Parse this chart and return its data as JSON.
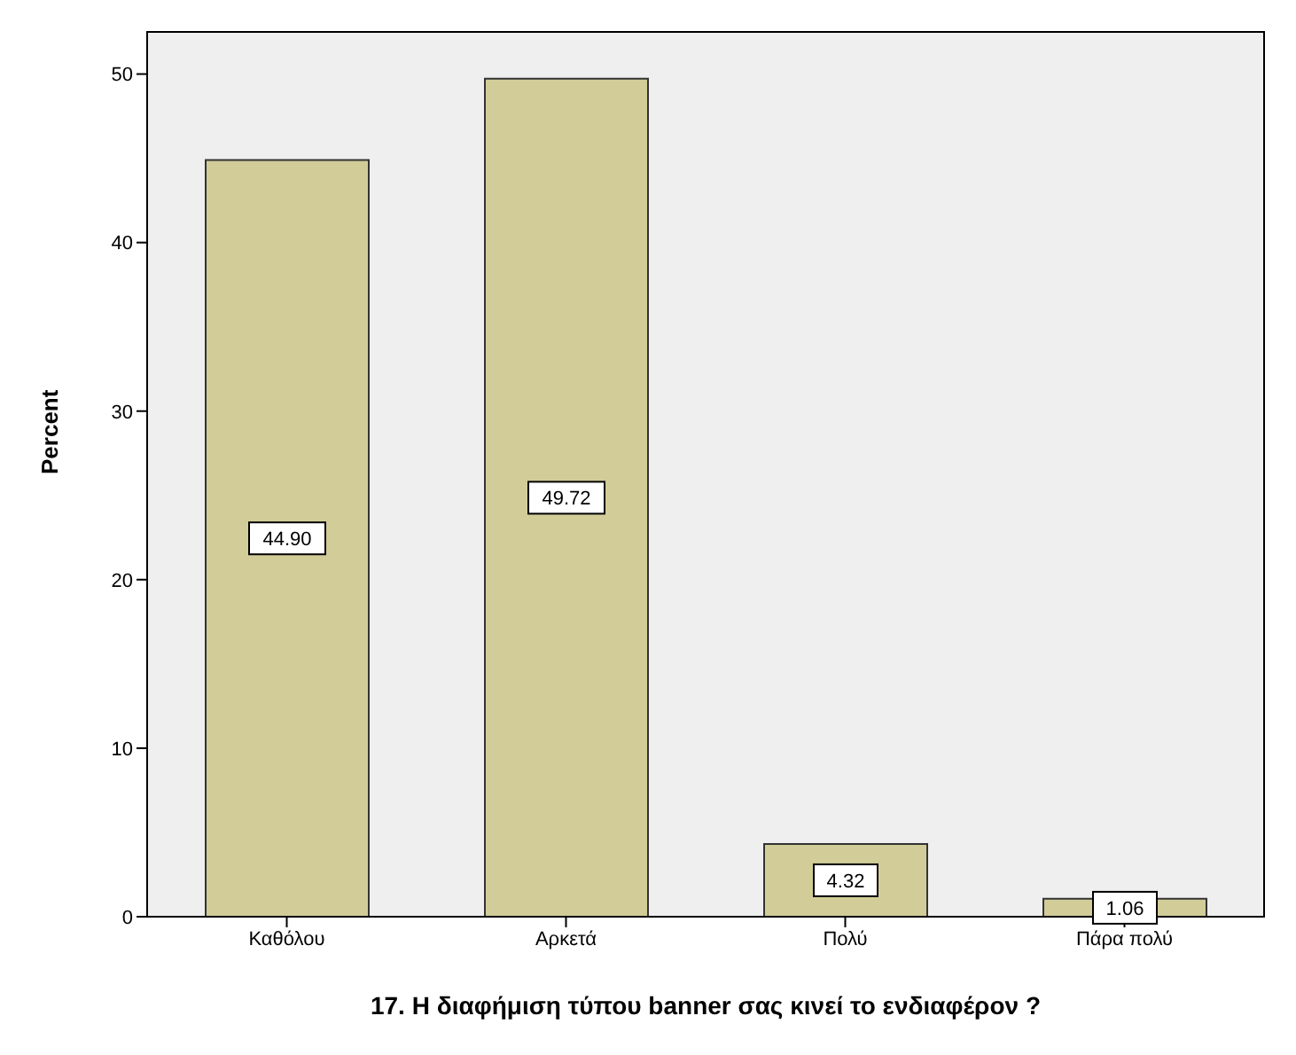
{
  "chart_data": {
    "type": "bar",
    "xlabel": "17.  Η διαφήμιση τύπου banner σας κινεί το ενδιαφέρον ?",
    "ylabel": "Percent",
    "categories": [
      "Καθόλου",
      "Αρκετά",
      "Πολύ",
      "Πάρα πολύ"
    ],
    "values": [
      44.9,
      49.72,
      4.32,
      1.06
    ],
    "value_labels": [
      "44.90",
      "49.72",
      "4.32",
      "1.06"
    ],
    "color": "#d2cc98",
    "ylim": [
      0,
      52.5
    ],
    "yticks": [
      0,
      10,
      20,
      30,
      40,
      50
    ]
  }
}
